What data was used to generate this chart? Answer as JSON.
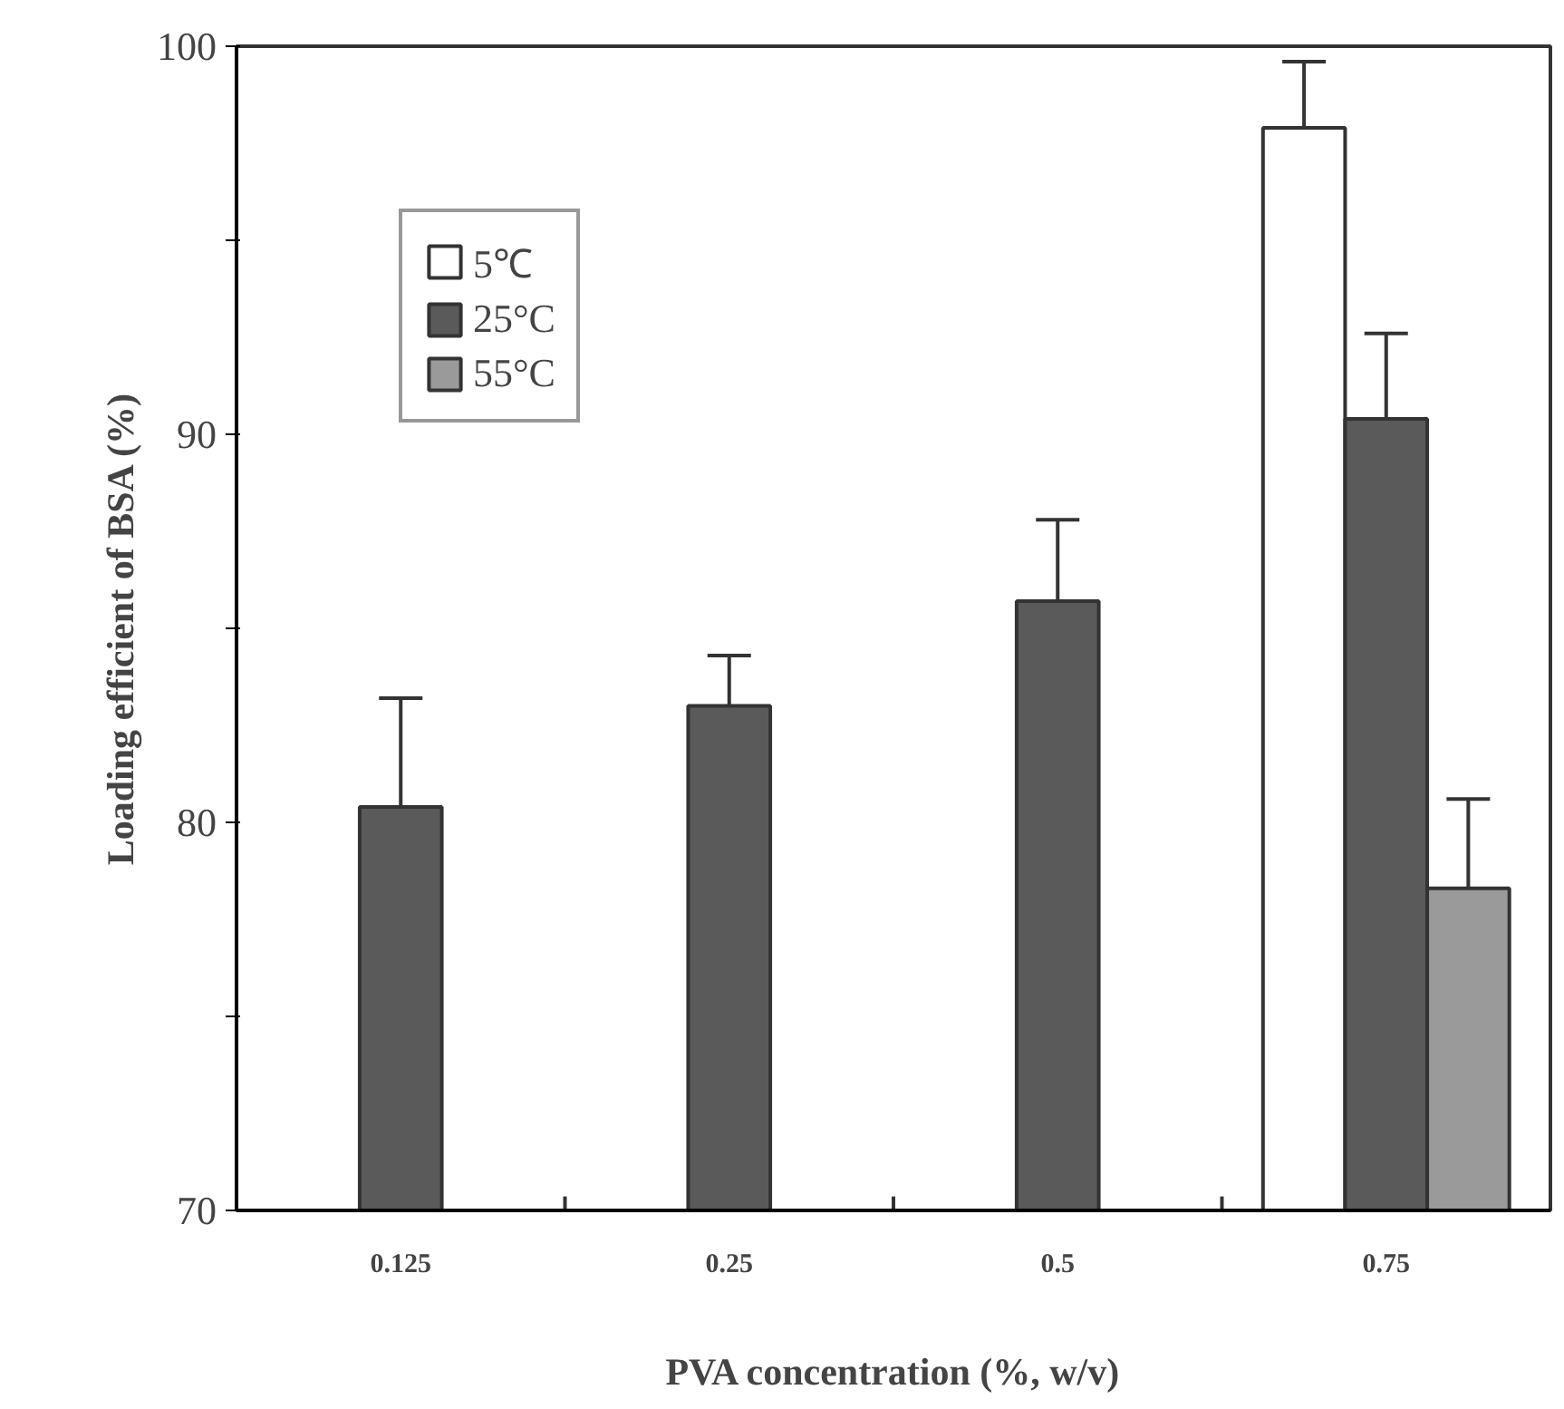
{
  "chart_data": {
    "type": "bar",
    "xlabel": "PVA concentration (%, w/v)",
    "ylabel": "Loading efficient of BSA (%)",
    "categories": [
      "0.125",
      "0.25",
      "0.5",
      "0.75"
    ],
    "series": [
      {
        "name": "5℃",
        "color": "#ffffff",
        "values": [
          null,
          null,
          null,
          97.9
        ],
        "errors": [
          null,
          null,
          null,
          [
            97.9,
            99.6
          ]
        ]
      },
      {
        "name": "25°C",
        "color": "#5a5a5a",
        "values": [
          80.4,
          83.0,
          85.7,
          90.4
        ],
        "errors": [
          [
            80.4,
            83.2
          ],
          [
            83.0,
            84.3
          ],
          [
            85.7,
            87.8
          ],
          [
            90.4,
            92.6
          ]
        ]
      },
      {
        "name": "55°C",
        "color": "#9a9a9a",
        "values": [
          null,
          null,
          null,
          78.3
        ],
        "errors": [
          null,
          null,
          null,
          [
            78.3,
            80.6
          ]
        ]
      }
    ],
    "ylim": [
      70,
      100
    ],
    "yticks": [
      70,
      {
        "value": 75,
        "label": null
      },
      80,
      {
        "value": 85,
        "label": null
      },
      90,
      {
        "value": 95,
        "label": null
      },
      100
    ],
    "grid": false,
    "legend": "top left"
  }
}
